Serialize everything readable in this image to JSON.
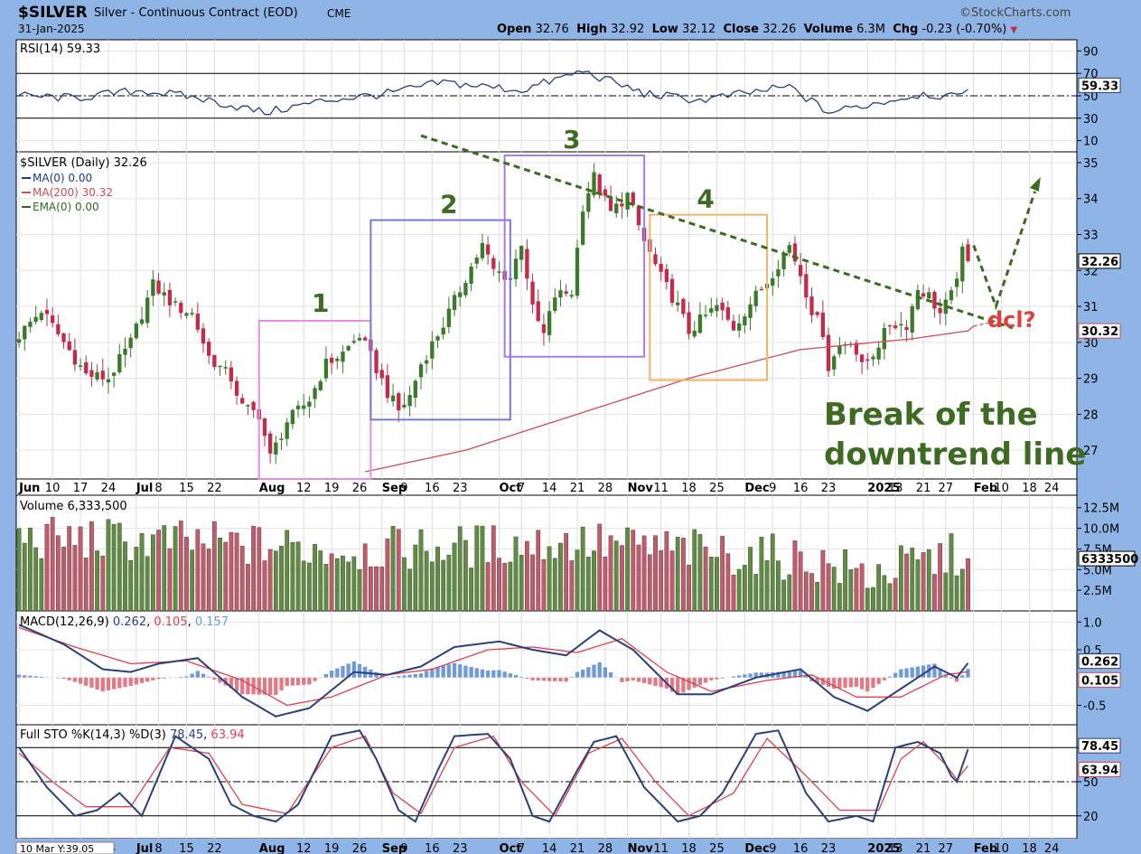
{
  "header": {
    "symbol": "$SILVER",
    "description": "Silver - Continuous Contract (EOD)",
    "exchange": "CME",
    "date": "31-Jan-2025",
    "credit": "©StockCharts.com",
    "open_label": "Open",
    "open": "32.76",
    "high_label": "High",
    "high": "32.92",
    "low_label": "Low",
    "low": "32.12",
    "close_label": "Close",
    "close": "32.26",
    "volume_label": "Volume",
    "volume": "6.3M",
    "chg_label": "Chg",
    "chg": "-0.23 (-0.70%)"
  },
  "colors": {
    "up": "#3a7a2a",
    "down": "#c42a4a",
    "ma200": "#d04a5a",
    "blue_line": "#2b3f7a",
    "red_line": "#e0404f",
    "hist_pos": "#6f9bdb",
    "hist_neg": "#e07a86",
    "annot_green": "#3e6b22",
    "annot_red": "#e04040",
    "box1": "#e38ee8",
    "box2": "#7777e0",
    "box3": "#a77de8",
    "box4": "#f0b36a"
  },
  "rsi": {
    "legend": "RSI(14) 59.33",
    "value_label": "59.33",
    "ticks": [
      "90",
      "70",
      "50",
      "30",
      "10"
    ],
    "levels": {
      "top": 70,
      "mid": 50,
      "bottom": 30
    },
    "range": [
      0,
      100
    ]
  },
  "price": {
    "legend": "$SILVER (Daily) 32.26",
    "ma_legend": "MA(0) 0.00",
    "ma200_legend": "MA(200) 30.32",
    "ema_legend": "EMA(0) 0.00",
    "ticks": [
      "35",
      "34",
      "33",
      "32",
      "31",
      "30",
      "29",
      "28",
      "27"
    ],
    "last_label": "32.26",
    "ma200_label": "30.32",
    "range": [
      26.2,
      35.3
    ]
  },
  "xaxis": {
    "labels": [
      {
        "t": "Jun",
        "d": 0,
        "b": true
      },
      {
        "t": "10",
        "d": 6
      },
      {
        "t": "17",
        "d": 11
      },
      {
        "t": "24",
        "d": 16
      },
      {
        "t": "Jul",
        "d": 21,
        "b": true
      },
      {
        "t": "8",
        "d": 25
      },
      {
        "t": "15",
        "d": 30
      },
      {
        "t": "22",
        "d": 35
      },
      {
        "t": "Aug",
        "d": 43,
        "b": true
      },
      {
        "t": "12",
        "d": 51
      },
      {
        "t": "19",
        "d": 56
      },
      {
        "t": "26",
        "d": 61
      },
      {
        "t": "Sep",
        "d": 65,
        "b": true
      },
      {
        "t": "9",
        "d": 69
      },
      {
        "t": "16",
        "d": 74
      },
      {
        "t": "23",
        "d": 79
      },
      {
        "t": "Oct",
        "d": 86,
        "b": true
      },
      {
        "t": "7",
        "d": 90
      },
      {
        "t": "14",
        "d": 95
      },
      {
        "t": "21",
        "d": 100
      },
      {
        "t": "28",
        "d": 105
      },
      {
        "t": "Nov",
        "d": 109,
        "b": true
      },
      {
        "t": "11",
        "d": 115
      },
      {
        "t": "18",
        "d": 120
      },
      {
        "t": "25",
        "d": 125
      },
      {
        "t": "Dec",
        "d": 130,
        "b": true
      },
      {
        "t": "9",
        "d": 135
      },
      {
        "t": "16",
        "d": 140
      },
      {
        "t": "23",
        "d": 145
      },
      {
        "t": "2025",
        "d": 152,
        "b": true
      },
      {
        "t": "13",
        "d": 157
      },
      {
        "t": "21",
        "d": 162
      },
      {
        "t": "27",
        "d": 166
      },
      {
        "t": "Feb",
        "d": 171,
        "b": true
      },
      {
        "t": "10",
        "d": 176
      },
      {
        "t": "18",
        "d": 181
      },
      {
        "t": "24",
        "d": 185
      }
    ],
    "bottom_prefix": "10 Mar Y:39.05"
  },
  "volume": {
    "legend": "Volume 6,333,500",
    "ticks": [
      "12.5M",
      "10.0M",
      "7.5M",
      "5.0M",
      "2.5M"
    ],
    "last_label": "6333500",
    "range": [
      0,
      14000000
    ]
  },
  "macd": {
    "legend_name": "MACD(12,26,9)",
    "macd": "0.262",
    "signal": "0.105",
    "hist": "0.157",
    "ticks": [
      "1.0",
      "0.5",
      "-0.5"
    ],
    "label1": "0.262",
    "label2": "0.105",
    "range": [
      -0.85,
      1.2
    ]
  },
  "sto": {
    "legend_name": "Full STO %K(14,3) %D(3)",
    "k": "78.45",
    "d": "63.94",
    "ticks": [
      "80",
      "50",
      "20"
    ],
    "label_k": "78.45",
    "label_d": "63.94",
    "range": [
      0,
      100
    ]
  },
  "annotations": {
    "wave1": "1",
    "wave2": "2",
    "wave3": "3",
    "wave4": "4",
    "dcl": "dcl?",
    "break_line1": "Break of the",
    "break_line2": "downtrend line"
  },
  "chart_data": {
    "type": "candlestick",
    "title": "$SILVER (Daily)",
    "x_start": "2024-06-03",
    "x_end": "2025-01-31",
    "series": [
      {
        "name": "$SILVER close",
        "anchors": [
          [
            0,
            30.2
          ],
          [
            4,
            30.9
          ],
          [
            8,
            30.0
          ],
          [
            12,
            29.1
          ],
          [
            16,
            29.0
          ],
          [
            20,
            30.0
          ],
          [
            24,
            31.6
          ],
          [
            28,
            31.0
          ],
          [
            31,
            30.8
          ],
          [
            34,
            29.6
          ],
          [
            38,
            29.0
          ],
          [
            40,
            28.2
          ],
          [
            43,
            28.0
          ],
          [
            45,
            26.8
          ],
          [
            48,
            27.8
          ],
          [
            52,
            28.4
          ],
          [
            55,
            29.4
          ],
          [
            58,
            29.7
          ],
          [
            61,
            30.2
          ],
          [
            63,
            29.6
          ],
          [
            66,
            28.6
          ],
          [
            68,
            28.1
          ],
          [
            70,
            28.5
          ],
          [
            72,
            29.4
          ],
          [
            76,
            30.5
          ],
          [
            80,
            31.8
          ],
          [
            83,
            32.7
          ],
          [
            85,
            32.0
          ],
          [
            88,
            31.8
          ],
          [
            90,
            32.8
          ],
          [
            92,
            30.9
          ],
          [
            94,
            30.2
          ],
          [
            96,
            31.3
          ],
          [
            99,
            31.4
          ],
          [
            101,
            33.8
          ],
          [
            103,
            34.6
          ],
          [
            106,
            33.6
          ],
          [
            109,
            34.1
          ],
          [
            112,
            32.8
          ],
          [
            115,
            31.8
          ],
          [
            118,
            31.0
          ],
          [
            120,
            30.3
          ],
          [
            122,
            30.6
          ],
          [
            125,
            31.0
          ],
          [
            128,
            30.4
          ],
          [
            131,
            31.1
          ],
          [
            134,
            31.7
          ],
          [
            138,
            32.7
          ],
          [
            140,
            31.9
          ],
          [
            142,
            30.9
          ],
          [
            144,
            30.3
          ],
          [
            145,
            29.3
          ],
          [
            147,
            29.9
          ],
          [
            149,
            30.1
          ],
          [
            151,
            29.3
          ],
          [
            153,
            29.7
          ],
          [
            156,
            30.5
          ],
          [
            159,
            30.5
          ],
          [
            161,
            31.5
          ],
          [
            163,
            31.3
          ],
          [
            165,
            30.8
          ],
          [
            167,
            31.3
          ],
          [
            169,
            32.5
          ],
          [
            170,
            32.26
          ]
        ]
      },
      {
        "name": "MA(200)",
        "anchors": [
          [
            62,
            26.4
          ],
          [
            80,
            27.0
          ],
          [
            100,
            28.0
          ],
          [
            120,
            29.0
          ],
          [
            140,
            29.8
          ],
          [
            160,
            30.1
          ],
          [
            170,
            30.32
          ],
          [
            171,
            30.45
          ]
        ]
      },
      {
        "name": "RSI(14)",
        "anchors": [
          [
            0,
            50
          ],
          [
            10,
            48
          ],
          [
            22,
            55
          ],
          [
            32,
            48
          ],
          [
            44,
            35
          ],
          [
            55,
            46
          ],
          [
            66,
            52
          ],
          [
            76,
            62
          ],
          [
            90,
            55
          ],
          [
            101,
            72
          ],
          [
            112,
            52
          ],
          [
            122,
            46
          ],
          [
            138,
            58
          ],
          [
            145,
            35
          ],
          [
            150,
            40
          ],
          [
            162,
            52
          ],
          [
            168,
            48
          ],
          [
            170,
            59.33
          ]
        ]
      },
      {
        "name": "MACD",
        "anchors": [
          [
            0,
            0.95
          ],
          [
            8,
            0.6
          ],
          [
            15,
            0.15
          ],
          [
            20,
            0.1
          ],
          [
            25,
            0.25
          ],
          [
            32,
            0.35
          ],
          [
            40,
            -0.35
          ],
          [
            46,
            -0.7
          ],
          [
            52,
            -0.55
          ],
          [
            60,
            0.1
          ],
          [
            66,
            0.05
          ],
          [
            72,
            0.2
          ],
          [
            78,
            0.55
          ],
          [
            86,
            0.65
          ],
          [
            92,
            0.5
          ],
          [
            98,
            0.4
          ],
          [
            104,
            0.85
          ],
          [
            110,
            0.5
          ],
          [
            118,
            -0.3
          ],
          [
            124,
            -0.3
          ],
          [
            132,
            0.0
          ],
          [
            140,
            0.15
          ],
          [
            146,
            -0.35
          ],
          [
            152,
            -0.6
          ],
          [
            158,
            -0.2
          ],
          [
            164,
            0.2
          ],
          [
            168,
            0.0
          ],
          [
            170,
            0.262
          ]
        ]
      },
      {
        "name": "Signal",
        "anchors": [
          [
            0,
            0.9
          ],
          [
            10,
            0.55
          ],
          [
            20,
            0.25
          ],
          [
            30,
            0.3
          ],
          [
            40,
            -0.05
          ],
          [
            48,
            -0.5
          ],
          [
            56,
            -0.35
          ],
          [
            66,
            0.05
          ],
          [
            74,
            0.15
          ],
          [
            84,
            0.5
          ],
          [
            92,
            0.55
          ],
          [
            100,
            0.45
          ],
          [
            108,
            0.7
          ],
          [
            116,
            0.1
          ],
          [
            124,
            -0.25
          ],
          [
            134,
            -0.05
          ],
          [
            142,
            0.05
          ],
          [
            150,
            -0.35
          ],
          [
            158,
            -0.35
          ],
          [
            166,
            0.05
          ],
          [
            170,
            0.105
          ]
        ]
      },
      {
        "name": "%K",
        "anchors": [
          [
            0,
            80
          ],
          [
            5,
            45
          ],
          [
            10,
            20
          ],
          [
            14,
            25
          ],
          [
            18,
            40
          ],
          [
            22,
            20
          ],
          [
            28,
            90
          ],
          [
            34,
            70
          ],
          [
            38,
            30
          ],
          [
            42,
            20
          ],
          [
            46,
            15
          ],
          [
            50,
            30
          ],
          [
            56,
            90
          ],
          [
            61,
            95
          ],
          [
            64,
            70
          ],
          [
            68,
            25
          ],
          [
            71,
            15
          ],
          [
            75,
            60
          ],
          [
            78,
            90
          ],
          [
            84,
            92
          ],
          [
            88,
            70
          ],
          [
            92,
            20
          ],
          [
            95,
            15
          ],
          [
            100,
            60
          ],
          [
            103,
            85
          ],
          [
            107,
            90
          ],
          [
            112,
            45
          ],
          [
            118,
            15
          ],
          [
            122,
            20
          ],
          [
            126,
            40
          ],
          [
            132,
            92
          ],
          [
            136,
            95
          ],
          [
            141,
            40
          ],
          [
            145,
            15
          ],
          [
            150,
            20
          ],
          [
            153,
            15
          ],
          [
            157,
            80
          ],
          [
            161,
            85
          ],
          [
            165,
            75
          ],
          [
            167,
            55
          ],
          [
            168,
            50
          ],
          [
            170,
            78.45
          ]
        ]
      },
      {
        "name": "%D",
        "anchors": [
          [
            0,
            75
          ],
          [
            6,
            50
          ],
          [
            12,
            28
          ],
          [
            20,
            28
          ],
          [
            27,
            80
          ],
          [
            34,
            75
          ],
          [
            40,
            30
          ],
          [
            48,
            22
          ],
          [
            56,
            80
          ],
          [
            62,
            90
          ],
          [
            67,
            40
          ],
          [
            72,
            22
          ],
          [
            78,
            80
          ],
          [
            85,
            90
          ],
          [
            90,
            50
          ],
          [
            96,
            20
          ],
          [
            102,
            75
          ],
          [
            108,
            88
          ],
          [
            114,
            50
          ],
          [
            120,
            20
          ],
          [
            128,
            40
          ],
          [
            134,
            88
          ],
          [
            140,
            60
          ],
          [
            147,
            25
          ],
          [
            154,
            25
          ],
          [
            158,
            70
          ],
          [
            162,
            85
          ],
          [
            166,
            65
          ],
          [
            168,
            52
          ],
          [
            170,
            63.94
          ]
        ]
      }
    ],
    "trendline": {
      "from": [
        72,
        35.75
      ],
      "to": [
        178,
        30.4
      ]
    },
    "boxes": [
      {
        "label": "1",
        "x": [
          43,
          63
        ],
        "y": [
          26.2,
          30.6
        ]
      },
      {
        "label": "2",
        "x": [
          63,
          88
        ],
        "y": [
          27.85,
          33.4
        ]
      },
      {
        "label": "3",
        "x": [
          87,
          112
        ],
        "y": [
          29.6,
          35.2
        ]
      },
      {
        "label": "4",
        "x": [
          113,
          134
        ],
        "y": [
          28.95,
          33.55
        ]
      }
    ]
  }
}
